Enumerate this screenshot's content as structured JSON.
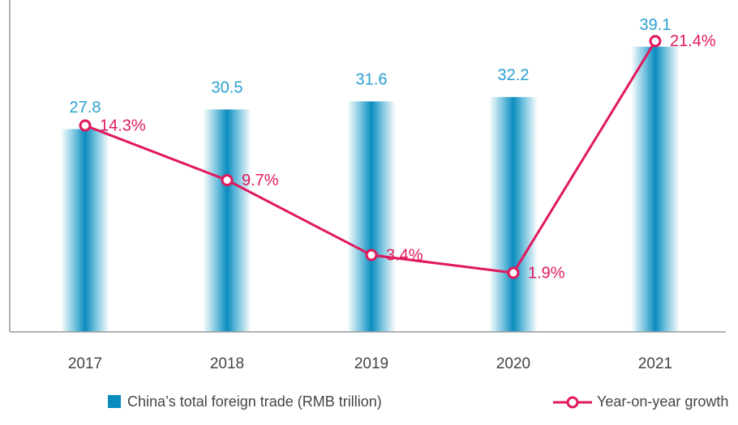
{
  "chart_data": {
    "type": "bar",
    "categories": [
      "2017",
      "2018",
      "2019",
      "2020",
      "2021"
    ],
    "series": [
      {
        "name": "China’s total foreign trade (RMB trillion)",
        "type": "bar",
        "color": "#0b8cbf",
        "values": [
          27.8,
          30.5,
          31.6,
          32.2,
          39.1
        ]
      },
      {
        "name": "Year-on-year growth",
        "type": "line",
        "color": "#e0195c",
        "axis": "y2",
        "values": [
          14.3,
          9.7,
          3.4,
          1.9,
          21.4
        ],
        "value_labels": [
          "14.3%",
          "9.7%",
          "3.4%",
          "1.9%",
          "21.4%"
        ]
      }
    ],
    "ylim": [
      0,
      45.5
    ],
    "y2lim": [
      -3.07,
      24.86
    ]
  }
}
